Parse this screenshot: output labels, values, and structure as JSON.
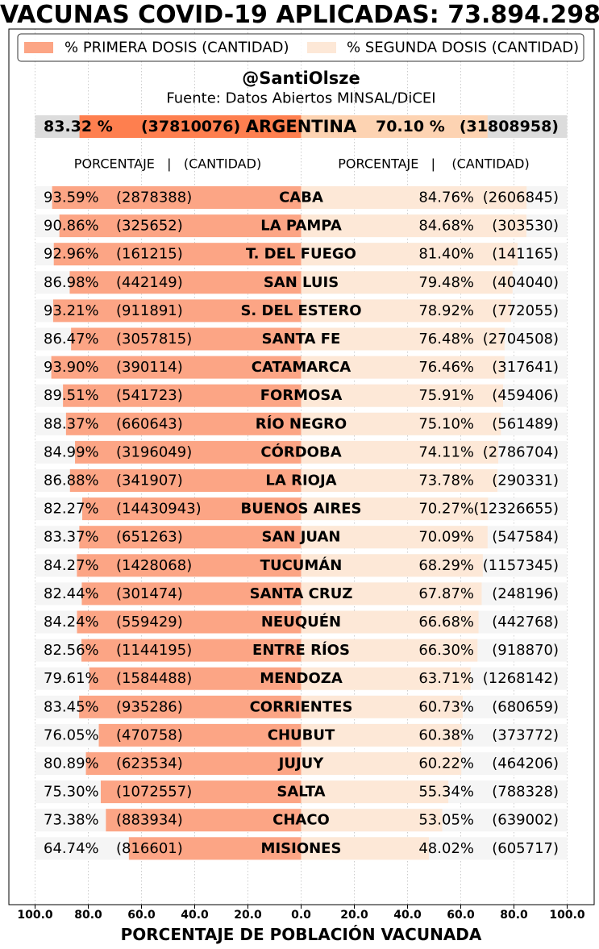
{
  "title": "VACUNAS COVID-19 APLICADAS: 73.894.298",
  "legend": [
    {
      "label": "% PRIMERA DOSIS (CANTIDAD)",
      "color": "#fca585"
    },
    {
      "label": "% SEGUNDA DOSIS (CANTIDAD)",
      "color": "#fde8d7"
    }
  ],
  "author": "@SantiOlsze",
  "source": "Fuente: Datos Abiertos MINSAL/DiCEI",
  "column_header_left": "PORCENTAJE   |   (CANTIDAD)",
  "column_header_right": "PORCENTAJE   |    (CANTIDAD)",
  "colors": {
    "first_dose": "#fca585",
    "second_dose": "#fde8d7",
    "national_first": "#fe7f4f",
    "national_second": "#fdd3b2",
    "national_bg": "#dcdcdc",
    "row_bg": "#f5f5f5"
  },
  "chart_data": {
    "type": "bar",
    "orientation": "horizontal-diverging",
    "xlabel": "PORCENTAJE DE POBLACIÓN VACUNADA",
    "xlim": [
      -100,
      100
    ],
    "xticks": [
      "100.0",
      "80.0",
      "60.0",
      "40.0",
      "20.0",
      "0.0",
      "20.0",
      "40.0",
      "60.0",
      "80.0",
      "100.0"
    ],
    "grid": "vertical",
    "legend_position": "top",
    "national": {
      "name": "ARGENTINA",
      "first_pct": 83.32,
      "first_pct_label": "83.32 %",
      "first_qty": "(37810076)",
      "second_pct": 70.1,
      "second_pct_label": "70.10 %",
      "second_qty": "(31808958)"
    },
    "series": [
      {
        "name": "% PRIMERA DOSIS (CANTIDAD)",
        "side": "left"
      },
      {
        "name": "% SEGUNDA DOSIS (CANTIDAD)",
        "side": "right"
      }
    ],
    "rows": [
      {
        "name": "CABA",
        "first_pct": 93.59,
        "first_label": "93.59%",
        "first_qty": "(2878388)",
        "second_pct": 84.76,
        "second_label": "84.76%",
        "second_qty": "(2606845)"
      },
      {
        "name": "LA PAMPA",
        "first_pct": 90.86,
        "first_label": "90.86%",
        "first_qty": "(325652)",
        "second_pct": 84.68,
        "second_label": "84.68%",
        "second_qty": "(303530)"
      },
      {
        "name": "T. DEL FUEGO",
        "first_pct": 92.96,
        "first_label": "92.96%",
        "first_qty": "(161215)",
        "second_pct": 81.4,
        "second_label": "81.40%",
        "second_qty": "(141165)"
      },
      {
        "name": "SAN LUIS",
        "first_pct": 86.98,
        "first_label": "86.98%",
        "first_qty": "(442149)",
        "second_pct": 79.48,
        "second_label": "79.48%",
        "second_qty": "(404040)"
      },
      {
        "name": "S. DEL ESTERO",
        "first_pct": 93.21,
        "first_label": "93.21%",
        "first_qty": "(911891)",
        "second_pct": 78.92,
        "second_label": "78.92%",
        "second_qty": "(772055)"
      },
      {
        "name": "SANTA FE",
        "first_pct": 86.47,
        "first_label": "86.47%",
        "first_qty": "(3057815)",
        "second_pct": 76.48,
        "second_label": "76.48%",
        "second_qty": "(2704508)"
      },
      {
        "name": "CATAMARCA",
        "first_pct": 93.9,
        "first_label": "93.90%",
        "first_qty": "(390114)",
        "second_pct": 76.46,
        "second_label": "76.46%",
        "second_qty": "(317641)"
      },
      {
        "name": "FORMOSA",
        "first_pct": 89.51,
        "first_label": "89.51%",
        "first_qty": "(541723)",
        "second_pct": 75.91,
        "second_label": "75.91%",
        "second_qty": "(459406)"
      },
      {
        "name": "RÍO NEGRO",
        "first_pct": 88.37,
        "first_label": "88.37%",
        "first_qty": "(660643)",
        "second_pct": 75.1,
        "second_label": "75.10%",
        "second_qty": "(561489)"
      },
      {
        "name": "CÓRDOBA",
        "first_pct": 84.99,
        "first_label": "84.99%",
        "first_qty": "(3196049)",
        "second_pct": 74.11,
        "second_label": "74.11%",
        "second_qty": "(2786704)"
      },
      {
        "name": "LA RIOJA",
        "first_pct": 86.88,
        "first_label": "86.88%",
        "first_qty": "(341907)",
        "second_pct": 73.78,
        "second_label": "73.78%",
        "second_qty": "(290331)"
      },
      {
        "name": "BUENOS AIRES",
        "first_pct": 82.27,
        "first_label": "82.27%",
        "first_qty": "(14430943)",
        "second_pct": 70.27,
        "second_label": "70.27%",
        "second_qty": "(12326655)"
      },
      {
        "name": "SAN JUAN",
        "first_pct": 83.37,
        "first_label": "83.37%",
        "first_qty": "(651263)",
        "second_pct": 70.09,
        "second_label": "70.09%",
        "second_qty": "(547584)"
      },
      {
        "name": "TUCUMÁN",
        "first_pct": 84.27,
        "first_label": "84.27%",
        "first_qty": "(1428068)",
        "second_pct": 68.29,
        "second_label": "68.29%",
        "second_qty": "(1157345)"
      },
      {
        "name": "SANTA CRUZ",
        "first_pct": 82.44,
        "first_label": "82.44%",
        "first_qty": "(301474)",
        "second_pct": 67.87,
        "second_label": "67.87%",
        "second_qty": "(248196)"
      },
      {
        "name": "NEUQUÉN",
        "first_pct": 84.24,
        "first_label": "84.24%",
        "first_qty": "(559429)",
        "second_pct": 66.68,
        "second_label": "66.68%",
        "second_qty": "(442768)"
      },
      {
        "name": "ENTRE RÍOS",
        "first_pct": 82.56,
        "first_label": "82.56%",
        "first_qty": "(1144195)",
        "second_pct": 66.3,
        "second_label": "66.30%",
        "second_qty": "(918870)"
      },
      {
        "name": "MENDOZA",
        "first_pct": 79.61,
        "first_label": "79.61%",
        "first_qty": "(1584488)",
        "second_pct": 63.71,
        "second_label": "63.71%",
        "second_qty": "(1268142)"
      },
      {
        "name": "CORRIENTES",
        "first_pct": 83.45,
        "first_label": "83.45%",
        "first_qty": "(935286)",
        "second_pct": 60.73,
        "second_label": "60.73%",
        "second_qty": "(680659)"
      },
      {
        "name": "CHUBUT",
        "first_pct": 76.05,
        "first_label": "76.05%",
        "first_qty": "(470758)",
        "second_pct": 60.38,
        "second_label": "60.38%",
        "second_qty": "(373772)"
      },
      {
        "name": "JUJUY",
        "first_pct": 80.89,
        "first_label": "80.89%",
        "first_qty": "(623534)",
        "second_pct": 60.22,
        "second_label": "60.22%",
        "second_qty": "(464206)"
      },
      {
        "name": "SALTA",
        "first_pct": 75.3,
        "first_label": "75.30%",
        "first_qty": "(1072557)",
        "second_pct": 55.34,
        "second_label": "55.34%",
        "second_qty": "(788328)"
      },
      {
        "name": "CHACO",
        "first_pct": 73.38,
        "first_label": "73.38%",
        "first_qty": "(883934)",
        "second_pct": 53.05,
        "second_label": "53.05%",
        "second_qty": "(639002)"
      },
      {
        "name": "MISIONES",
        "first_pct": 64.74,
        "first_label": "64.74%",
        "first_qty": "(816601)",
        "second_pct": 48.02,
        "second_label": "48.02%",
        "second_qty": "(605717)"
      }
    ]
  }
}
